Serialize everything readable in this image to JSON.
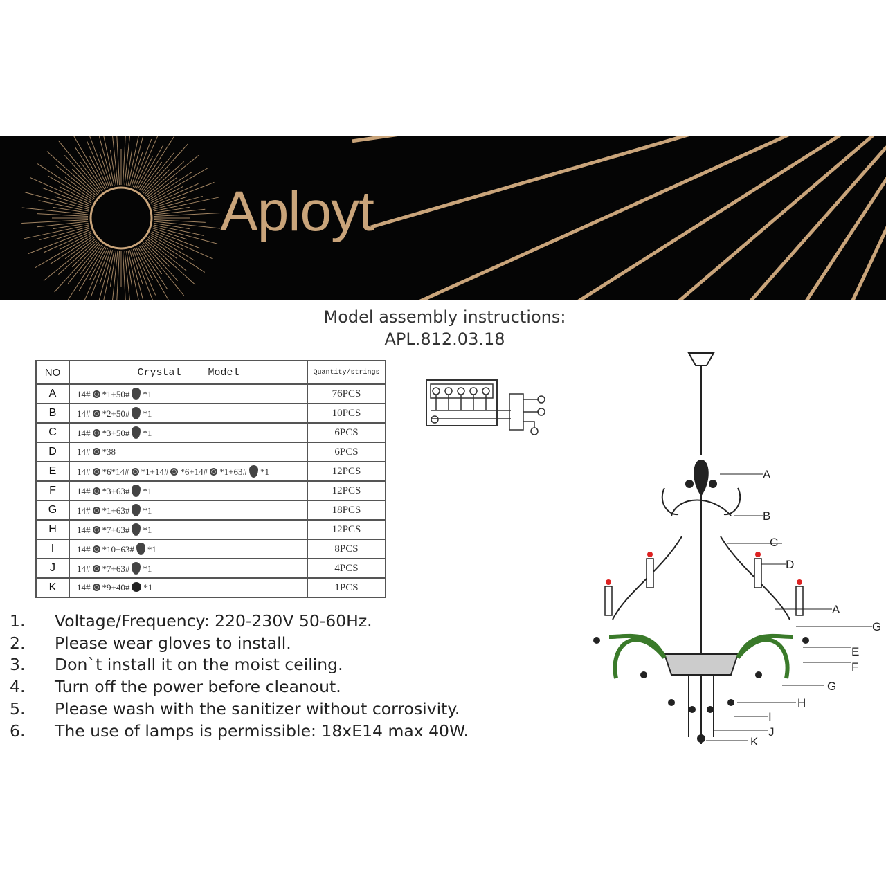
{
  "brand": {
    "logo": "Aployt",
    "gold": "#c9a47a"
  },
  "header": {
    "title": "Model assembly instructions:",
    "model": "APL.812.03.18"
  },
  "table": {
    "headers": {
      "no": "NO",
      "model": "Crystal Model",
      "qty": "Quantity/strings"
    },
    "rows": [
      {
        "no": "A",
        "model": [
          [
            "t",
            "14#"
          ],
          [
            "i",
            "bead"
          ],
          [
            "t",
            "*1+50#"
          ],
          [
            "i",
            "drop"
          ],
          [
            "t",
            "*1"
          ]
        ],
        "qty": "76PCS"
      },
      {
        "no": "B",
        "model": [
          [
            "t",
            "14#"
          ],
          [
            "i",
            "bead"
          ],
          [
            "t",
            "*2+50#"
          ],
          [
            "i",
            "drop"
          ],
          [
            "t",
            "*1"
          ]
        ],
        "qty": "10PCS"
      },
      {
        "no": "C",
        "model": [
          [
            "t",
            "14#"
          ],
          [
            "i",
            "bead"
          ],
          [
            "t",
            "*3+50#"
          ],
          [
            "i",
            "drop"
          ],
          [
            "t",
            "*1"
          ]
        ],
        "qty": "6PCS"
      },
      {
        "no": "D",
        "model": [
          [
            "t",
            "14#"
          ],
          [
            "i",
            "bead"
          ],
          [
            "t",
            "*38"
          ]
        ],
        "qty": "6PCS"
      },
      {
        "no": "E",
        "model": [
          [
            "t",
            "14#"
          ],
          [
            "i",
            "bead"
          ],
          [
            "t",
            "*6*14#"
          ],
          [
            "i",
            "bead"
          ],
          [
            "t",
            "*1+14#"
          ],
          [
            "i",
            "bead"
          ],
          [
            "t",
            "*6+14#"
          ],
          [
            "i",
            "bead"
          ],
          [
            "t",
            "*1+63#"
          ],
          [
            "i",
            "drop"
          ],
          [
            "t",
            "*1"
          ]
        ],
        "qty": "12PCS"
      },
      {
        "no": "F",
        "model": [
          [
            "t",
            "14#"
          ],
          [
            "i",
            "bead"
          ],
          [
            "t",
            "*3+63#"
          ],
          [
            "i",
            "drop"
          ],
          [
            "t",
            "*1"
          ]
        ],
        "qty": "12PCS"
      },
      {
        "no": "G",
        "model": [
          [
            "t",
            "14#"
          ],
          [
            "i",
            "bead"
          ],
          [
            "t",
            "*1+63#"
          ],
          [
            "i",
            "drop"
          ],
          [
            "t",
            "*1"
          ]
        ],
        "qty": "18PCS"
      },
      {
        "no": "H",
        "model": [
          [
            "t",
            "14#"
          ],
          [
            "i",
            "bead"
          ],
          [
            "t",
            "*7+63#"
          ],
          [
            "i",
            "drop"
          ],
          [
            "t",
            "*1"
          ]
        ],
        "qty": "12PCS"
      },
      {
        "no": "I",
        "model": [
          [
            "t",
            "14#"
          ],
          [
            "i",
            "bead"
          ],
          [
            "t",
            "*10+63#"
          ],
          [
            "i",
            "drop"
          ],
          [
            "t",
            "*1"
          ]
        ],
        "qty": "8PCS"
      },
      {
        "no": "J",
        "model": [
          [
            "t",
            "14#"
          ],
          [
            "i",
            "bead"
          ],
          [
            "t",
            "*7+63#"
          ],
          [
            "i",
            "drop"
          ],
          [
            "t",
            "*1"
          ]
        ],
        "qty": "4PCS"
      },
      {
        "no": "K",
        "model": [
          [
            "t",
            "14#"
          ],
          [
            "i",
            "bead"
          ],
          [
            "t",
            "*9+40#"
          ],
          [
            "i",
            "ball"
          ],
          [
            "t",
            "*1"
          ]
        ],
        "qty": "1PCS"
      }
    ]
  },
  "notes": [
    {
      "n": "1.",
      "text": "Voltage/Frequency: 220-230V 50-60Hz."
    },
    {
      "n": "2.",
      "text": "Please wear gloves to install."
    },
    {
      "n": "3.",
      "text": "Don`t install it on the moist ceiling."
    },
    {
      "n": "4.",
      "text": "Turn off the power before cleanout."
    },
    {
      "n": "5.",
      "text": "Please wash with the sanitizer without corrosivity."
    },
    {
      "n": "6.",
      "text": "The use of lamps is permissible: 18xE14 max 40W."
    }
  ],
  "diagram_labels": {
    "A1": "A",
    "B": "B",
    "C": "C",
    "D": "D",
    "A2": "A",
    "G1": "G",
    "E": "E",
    "F": "F",
    "G2": "G",
    "H": "H",
    "I": "I",
    "J": "J",
    "K": "K"
  }
}
